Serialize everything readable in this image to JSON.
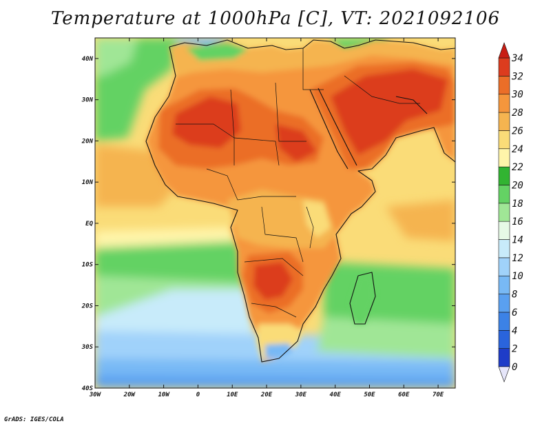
{
  "title": "Temperature at 1000hPa [C], VT: 2021092106",
  "credit": "GrADS: IGES/COLA",
  "map": {
    "lon_range": [
      -30,
      75
    ],
    "lat_range": [
      -40,
      45
    ],
    "lon_ticks": [
      {
        "value": -30,
        "label": "30W"
      },
      {
        "value": -20,
        "label": "20W"
      },
      {
        "value": -10,
        "label": "10W"
      },
      {
        "value": 0,
        "label": "0"
      },
      {
        "value": 10,
        "label": "10E"
      },
      {
        "value": 20,
        "label": "20E"
      },
      {
        "value": 30,
        "label": "30E"
      },
      {
        "value": 40,
        "label": "40E"
      },
      {
        "value": 50,
        "label": "50E"
      },
      {
        "value": 60,
        "label": "60E"
      },
      {
        "value": 70,
        "label": "70E"
      }
    ],
    "lat_ticks": [
      {
        "value": 40,
        "label": "40N"
      },
      {
        "value": 30,
        "label": "30N"
      },
      {
        "value": 20,
        "label": "20N"
      },
      {
        "value": 10,
        "label": "10N"
      },
      {
        "value": 0,
        "label": "EQ"
      },
      {
        "value": -10,
        "label": "10S"
      },
      {
        "value": -20,
        "label": "20S"
      },
      {
        "value": -30,
        "label": "30S"
      },
      {
        "value": -40,
        "label": "40S"
      }
    ]
  },
  "colorbar": {
    "levels": [
      0,
      2,
      4,
      6,
      8,
      10,
      12,
      14,
      16,
      18,
      20,
      22,
      24,
      26,
      28,
      30,
      32,
      34
    ],
    "colors": [
      "#1a1a8c",
      "#1e3cc8",
      "#2a64dc",
      "#3c82e6",
      "#5aa0f0",
      "#78b9f5",
      "#a0d2fa",
      "#c8ebfa",
      "#e6fae6",
      "#a0e696",
      "#64d264",
      "#32b432",
      "#fff5aa",
      "#fadc78",
      "#f5b450",
      "#f5963c",
      "#eb6e28",
      "#dc3c1e",
      "#c81e14"
    ],
    "under_color": "#e6e6fa",
    "over_color": "#c81e14"
  }
}
